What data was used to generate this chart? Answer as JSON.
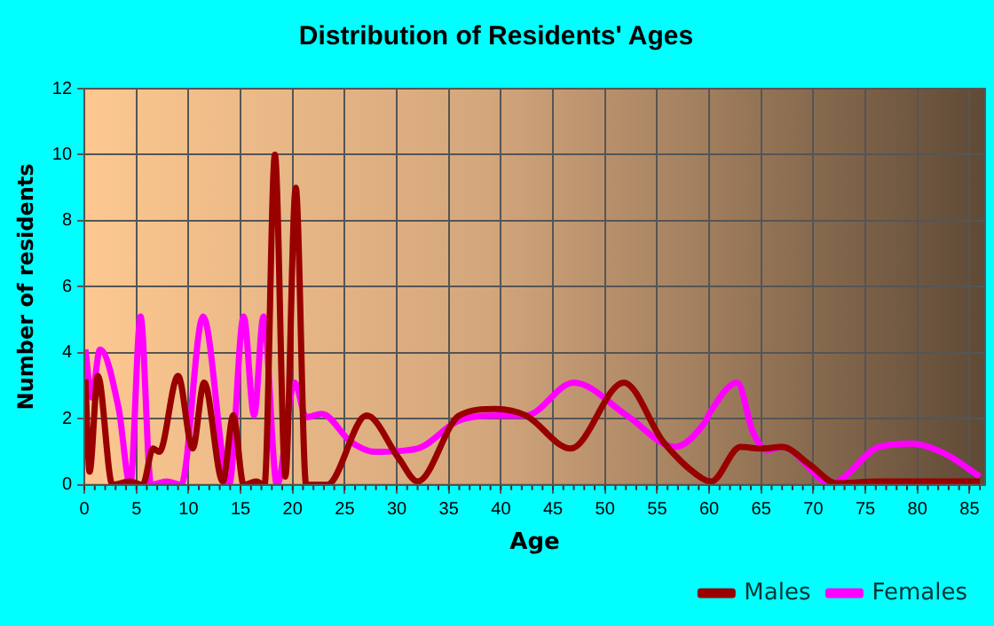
{
  "chart_data": {
    "type": "line",
    "title": "Distribution of Residents' Ages",
    "xlabel": "Age",
    "ylabel": "Number of residents",
    "xlim": [
      0,
      86.5
    ],
    "xticks": [
      0,
      5,
      10,
      15,
      20,
      25,
      30,
      35,
      40,
      45,
      50,
      55,
      60,
      65,
      70,
      75,
      80,
      85
    ],
    "ylim": [
      0,
      12
    ],
    "yticks": [
      0,
      2,
      4,
      6,
      8,
      10,
      12
    ],
    "grid": true,
    "legend": "bottom right",
    "marker": "none",
    "line_style": "solid",
    "series": [
      {
        "name": "Males",
        "color": "#990000",
        "x": [
          0.1,
          0.5,
          1.3,
          2.7,
          4.4,
          5.6,
          6.6,
          7.2,
          9.0,
          10.4,
          11.5,
          13.3,
          14.3,
          15.3,
          16.5,
          17.3,
          18.3,
          19.3,
          20.3,
          21.3,
          23.3,
          27.1,
          30.2,
          32,
          36,
          39.5,
          42.4,
          46.7,
          51.8,
          55.6,
          59.3,
          60.2,
          63,
          65,
          67,
          69.7,
          72.2,
          76.3,
          86
        ],
        "values": [
          3.2,
          0.4,
          3.3,
          0,
          0.1,
          0,
          1.1,
          1.0,
          3.3,
          1.1,
          3.1,
          0.1,
          2.1,
          0,
          0.1,
          0,
          10,
          0.25,
          9,
          0,
          0,
          2.1,
          0.8,
          0.1,
          2.1,
          2.3,
          2.1,
          1.1,
          3.1,
          1.3,
          0.2,
          0.1,
          1.15,
          1.1,
          1.15,
          0.6,
          0.05,
          0.1,
          0.1
        ]
      },
      {
        "name": "Females",
        "color": "#ff00ff",
        "x": [
          0.1,
          0.7,
          1.5,
          3.3,
          4.4,
          5.4,
          6.4,
          7.9,
          9.3,
          11.4,
          13.9,
          15.3,
          16.3,
          17.2,
          18.5,
          20.2,
          21.3,
          22.8,
          25.6,
          27.9,
          32,
          36,
          40,
          42.4,
          47,
          52.1,
          56.7,
          59.6,
          60.1,
          62.7,
          64.2,
          65.6,
          67,
          71.7,
          76.3,
          79.4,
          82.6,
          86
        ],
        "values": [
          4.1,
          2.65,
          4.1,
          2.3,
          0,
          5.1,
          0,
          0.1,
          0,
          5.1,
          0,
          5.1,
          2.1,
          5.1,
          0,
          3.1,
          2.05,
          2.15,
          1.3,
          1.0,
          1.1,
          1.95,
          2.1,
          2.1,
          3.1,
          2.1,
          1.15,
          1.9,
          2.2,
          3.1,
          1.6,
          1.05,
          1.15,
          0.05,
          1.15,
          1.25,
          0.95,
          0.25
        ]
      }
    ]
  }
}
